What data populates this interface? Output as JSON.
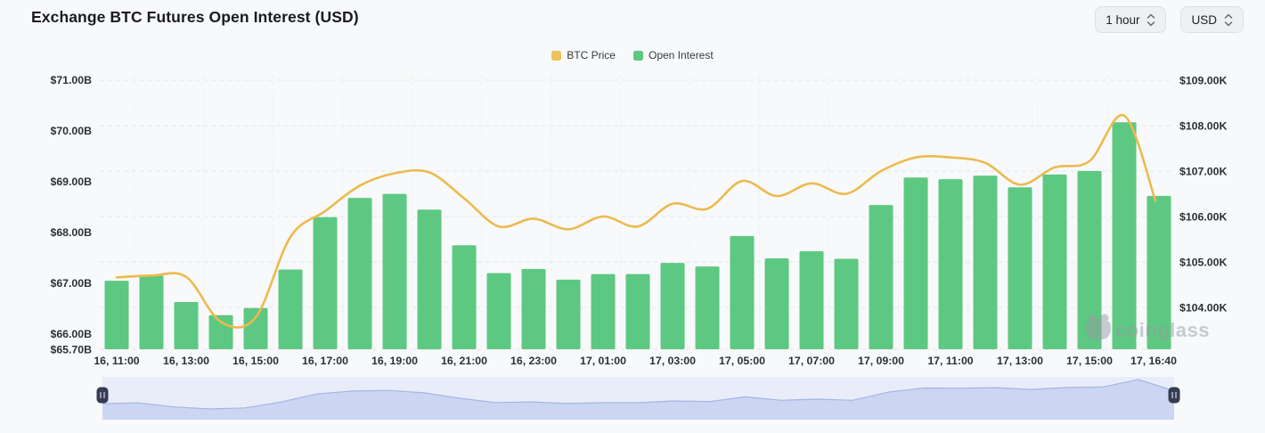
{
  "header": {
    "title": "Exchange BTC Futures Open Interest (USD)"
  },
  "controls": {
    "interval": "1 hour",
    "currency": "USD"
  },
  "legend": [
    {
      "label": "BTC Price",
      "color": "#eec25c"
    },
    {
      "label": "Open Interest",
      "color": "#5dc881"
    }
  ],
  "watermark": {
    "text": "coinglass"
  },
  "colors": {
    "background": "#f8f9fa",
    "bar": "#5dc881",
    "line": "#ecba4e",
    "grid": "#e6e7e9",
    "grid_vertical": "#eef0f2",
    "axis_text": "#2d3033",
    "navigator_band": "#e9edf9",
    "navigator_area": "#ccd5f1",
    "navigator_line": "#a6b4e6",
    "navigator_handle": "#363c52",
    "watermark_gray": "#989ca5"
  },
  "chart_data": {
    "type": "bar+line combo, dual axis",
    "title": "Exchange BTC Futures Open Interest (USD)",
    "grid": "horizontal dashed",
    "legend_position": "top-center",
    "categories": [
      "16, 11:00",
      "16, 12:00",
      "16, 13:00",
      "16, 14:00",
      "16, 15:00",
      "16, 16:00",
      "16, 17:00",
      "16, 18:00",
      "16, 19:00",
      "16, 20:00",
      "16, 21:00",
      "16, 22:00",
      "16, 23:00",
      "17, 00:00",
      "17, 01:00",
      "17, 02:00",
      "17, 03:00",
      "17, 04:00",
      "17, 05:00",
      "17, 06:00",
      "17, 07:00",
      "17, 08:00",
      "17, 09:00",
      "17, 10:00",
      "17, 11:00",
      "17, 12:00",
      "17, 13:00",
      "17, 14:00",
      "17, 15:00",
      "17, 16:00",
      "17, 16:40"
    ],
    "x_tick_indices": [
      0,
      2,
      4,
      6,
      8,
      10,
      12,
      14,
      16,
      18,
      20,
      22,
      24,
      26,
      28,
      30
    ],
    "x_tick_labels": [
      "16, 11:00",
      "16, 13:00",
      "16, 15:00",
      "16, 17:00",
      "16, 19:00",
      "16, 21:00",
      "16, 23:00",
      "17, 01:00",
      "17, 03:00",
      "17, 05:00",
      "17, 07:00",
      "17, 09:00",
      "17, 11:00",
      "17, 13:00",
      "17, 15:00",
      "17, 16:40"
    ],
    "series": [
      {
        "name": "Open Interest",
        "type": "bar",
        "axis": "left",
        "unit": "USD billions",
        "color": "#5dc881",
        "values": [
          67.05,
          67.15,
          66.63,
          66.37,
          66.51,
          67.27,
          68.3,
          68.68,
          68.76,
          68.45,
          67.75,
          67.2,
          67.28,
          67.07,
          67.18,
          67.18,
          67.4,
          67.33,
          67.93,
          67.49,
          67.63,
          67.48,
          68.54,
          69.08,
          69.05,
          69.12,
          68.89,
          69.14,
          69.21,
          70.17,
          68.72
        ]
      },
      {
        "name": "BTC Price",
        "type": "line",
        "axis": "right",
        "unit": "USD thousands",
        "color": "#ecba4e",
        "values": [
          104.66,
          104.7,
          104.67,
          103.68,
          103.78,
          105.55,
          106.12,
          106.68,
          106.95,
          106.97,
          106.4,
          105.78,
          105.95,
          105.72,
          106.0,
          105.78,
          106.28,
          106.17,
          106.78,
          106.45,
          106.73,
          106.5,
          107.0,
          107.3,
          107.3,
          107.18,
          106.7,
          107.08,
          107.22,
          108.22,
          106.35
        ]
      }
    ],
    "left_axis": {
      "tick_labels": [
        "$71.00B",
        "$70.00B",
        "$69.00B",
        "$68.00B",
        "$67.00B",
        "$66.00B",
        "$65.70B"
      ],
      "tick_values": [
        71,
        70,
        69,
        68,
        67,
        66,
        65.7
      ],
      "min": 65.7,
      "max": 71.2
    },
    "right_axis": {
      "tick_labels": [
        "$109.00K",
        "$108.00K",
        "$107.00K",
        "$106.00K",
        "$105.00K",
        "$104.00K"
      ],
      "tick_values": [
        109,
        108,
        107,
        106,
        105,
        104
      ],
      "min": 103.1,
      "max": 109.2
    },
    "navigator": {
      "range": "full",
      "left_handle": "start",
      "right_handle": "end"
    }
  }
}
